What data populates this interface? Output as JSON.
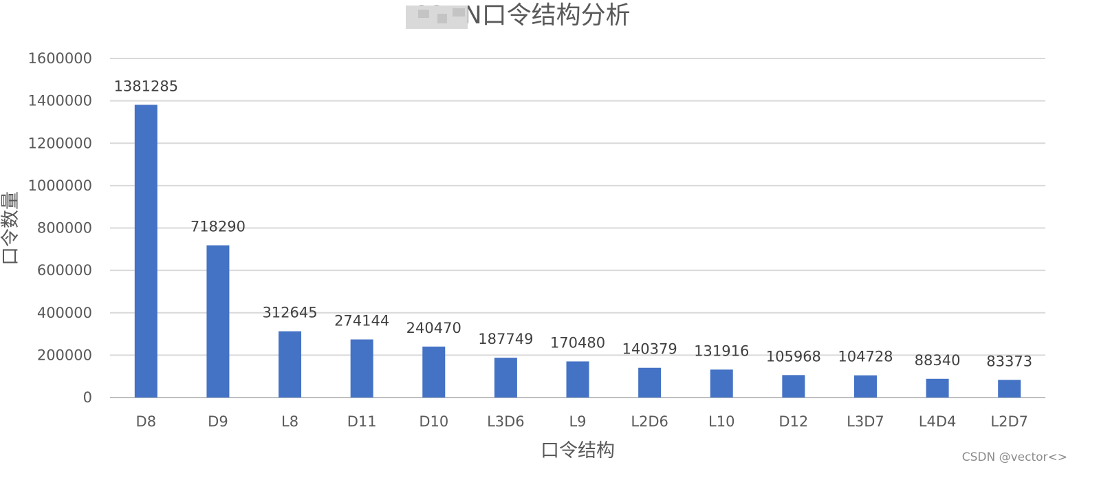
{
  "chart_data": {
    "type": "bar",
    "title": "CSDN口令结构分析",
    "xlabel": "口令结构",
    "ylabel": "口令数量",
    "categories": [
      "D8",
      "D9",
      "L8",
      "D11",
      "D10",
      "L3D6",
      "L9",
      "L2D6",
      "L10",
      "D12",
      "L3D7",
      "L4D4",
      "L2D7"
    ],
    "values": [
      1381285,
      718290,
      312645,
      274144,
      240470,
      187749,
      170480,
      140379,
      131916,
      105968,
      104728,
      88340,
      83373
    ],
    "data_labels": [
      "1381285",
      "718290",
      "312645",
      "274144",
      "240470",
      "187749",
      "170480",
      "140379",
      "131916",
      "105968",
      "104728",
      "88340",
      "83373"
    ],
    "ylim": [
      0,
      1600000
    ],
    "yticks": [
      0,
      200000,
      400000,
      600000,
      800000,
      1000000,
      1200000,
      1400000,
      1600000
    ],
    "ytick_labels": [
      "0",
      "200000",
      "400000",
      "600000",
      "800000",
      "1000000",
      "1200000",
      "1400000",
      "1600000"
    ],
    "grid": true,
    "legend": "none",
    "bar_color": "#4472C4"
  },
  "watermark": "CSDN @vector<>"
}
